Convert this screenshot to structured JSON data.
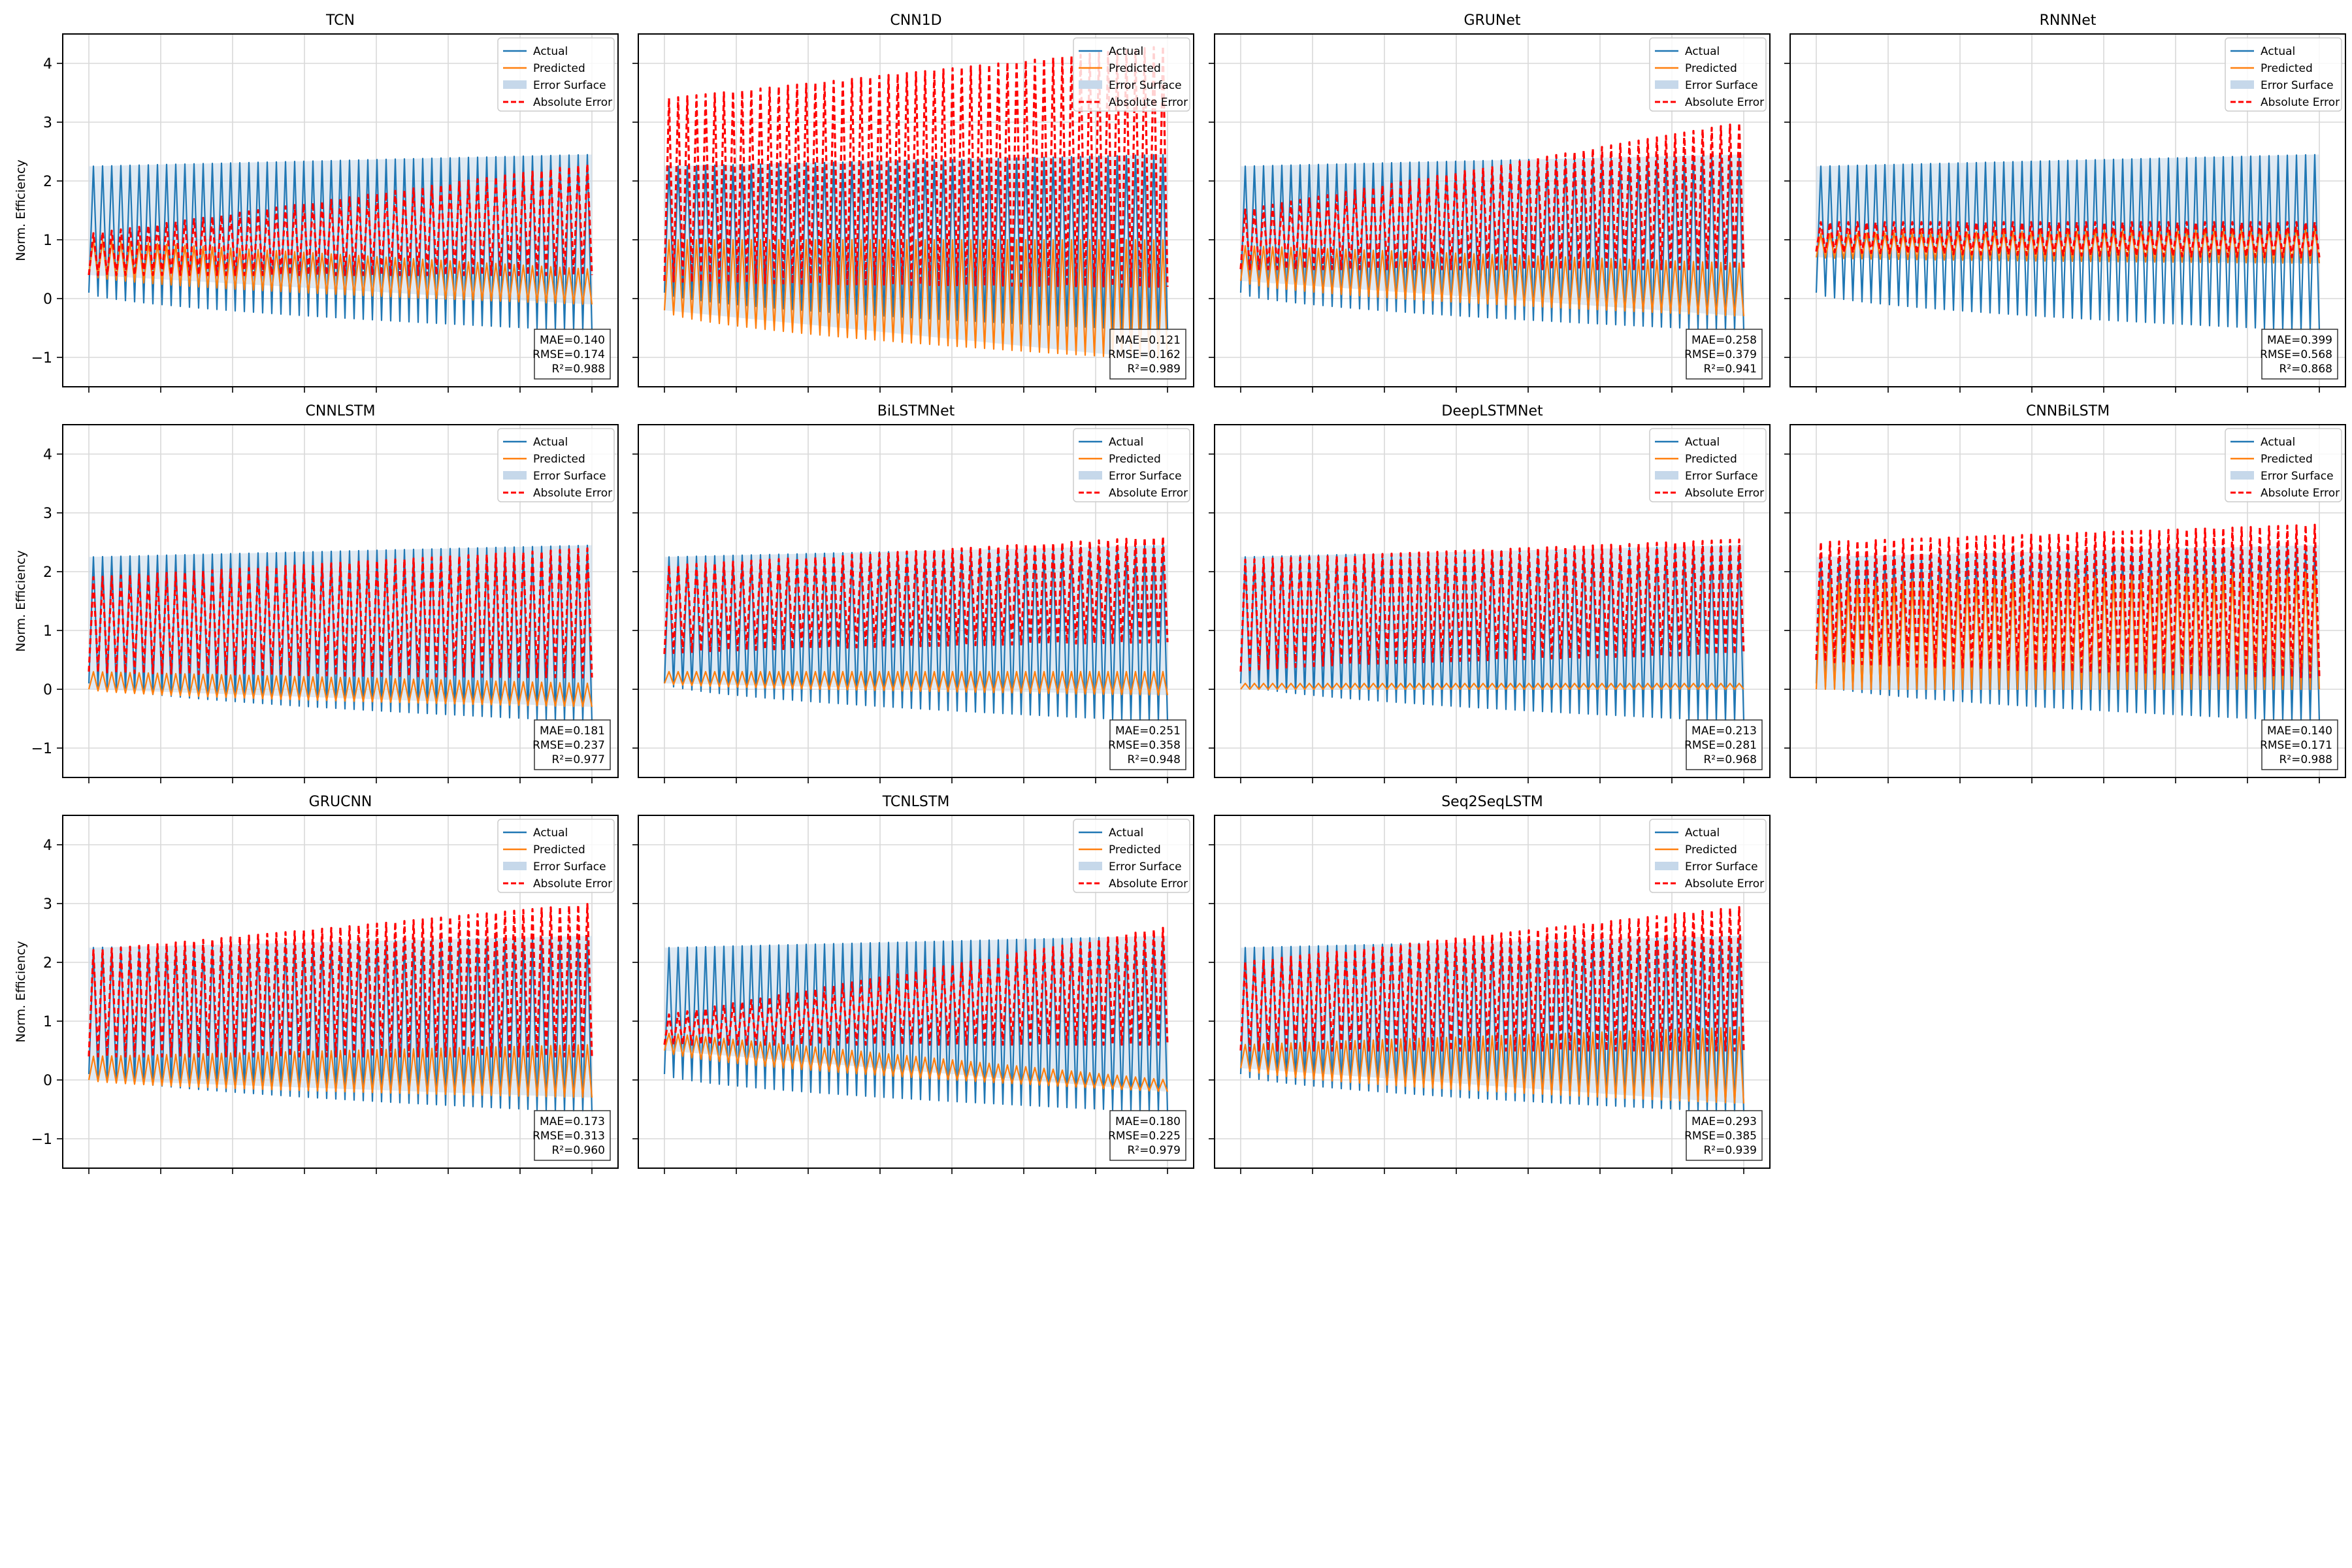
{
  "figure": {
    "ylabel": "Norm. Efficiency",
    "legend_labels": [
      "Actual",
      "Predicted",
      "Error Surface",
      "Absolute Error"
    ],
    "colors": {
      "actual": "#1f77b4",
      "predicted": "#ff7f0e",
      "error_surface": "#c6d8ea",
      "absolute_error": "#ff0000",
      "grid": "#d9d9d9",
      "axis": "#000000"
    }
  },
  "chart_data": [
    {
      "type": "line",
      "title": "TCN",
      "ylim": [
        -1.5,
        4.5
      ],
      "yticks": [
        -1,
        0,
        1,
        2,
        3,
        4
      ],
      "grid": true,
      "legend": "top-right",
      "metrics": {
        "mae": "MAE=0.140",
        "rmse": "RMSE=0.174",
        "r2": "R²=0.988"
      },
      "series": [
        {
          "name": "Actual",
          "envelope": {
            "high": [
              2.25,
              2.45
            ],
            "low": [
              0.1,
              -0.55
            ],
            "cycles": 55
          }
        },
        {
          "name": "Predicted",
          "envelope": {
            "high": [
              1.0,
              0.5
            ],
            "low": [
              0.4,
              -0.1
            ]
          }
        },
        {
          "name": "Absolute Error",
          "envelope": {
            "high": [
              1.1,
              2.3
            ],
            "low": [
              0.4,
              0.4
            ]
          }
        }
      ]
    },
    {
      "type": "line",
      "title": "CNN1D",
      "ylim": [
        -1.5,
        4.5
      ],
      "yticks": [
        -1,
        0,
        1,
        2,
        3,
        4
      ],
      "grid": true,
      "legend": "top-right",
      "metrics": {
        "mae": "MAE=0.121",
        "rmse": "RMSE=0.162",
        "r2": "R²=0.989"
      },
      "series": [
        {
          "name": "Actual",
          "envelope": {
            "high": [
              2.25,
              2.45
            ],
            "low": [
              0.1,
              -0.55
            ],
            "cycles": 55
          }
        },
        {
          "name": "Predicted",
          "envelope": {
            "high": [
              1.0,
              1.0
            ],
            "low": [
              -0.2,
              -1.05
            ]
          }
        },
        {
          "name": "Absolute Error",
          "envelope": {
            "high": [
              3.4,
              4.3
            ],
            "low": [
              0.3,
              0.2
            ]
          }
        }
      ]
    },
    {
      "type": "line",
      "title": "GRUNet",
      "ylim": [
        -1.5,
        4.5
      ],
      "yticks": [
        -1,
        0,
        1,
        2,
        3,
        4
      ],
      "grid": true,
      "legend": "top-right",
      "metrics": {
        "mae": "MAE=0.258",
        "rmse": "RMSE=0.379",
        "r2": "R²=0.941"
      },
      "series": [
        {
          "name": "Actual",
          "envelope": {
            "high": [
              2.25,
              2.45
            ],
            "low": [
              0.1,
              -0.55
            ],
            "cycles": 55
          }
        },
        {
          "name": "Predicted",
          "envelope": {
            "high": [
              0.9,
              0.6
            ],
            "low": [
              0.3,
              -0.3
            ]
          }
        },
        {
          "name": "Absolute Error",
          "envelope": {
            "high": [
              1.5,
              3.0
            ],
            "low": [
              0.5,
              0.5
            ]
          }
        }
      ]
    },
    {
      "type": "line",
      "title": "RNNNet",
      "ylim": [
        -1.5,
        4.5
      ],
      "yticks": [
        -1,
        0,
        1,
        2,
        3,
        4
      ],
      "grid": true,
      "legend": "top-right",
      "metrics": {
        "mae": "MAE=0.399",
        "rmse": "RMSE=0.568",
        "r2": "R²=0.868"
      },
      "series": [
        {
          "name": "Actual",
          "envelope": {
            "high": [
              2.25,
              2.45
            ],
            "low": [
              0.1,
              -0.55
            ],
            "cycles": 55
          }
        },
        {
          "name": "Predicted",
          "envelope": {
            "high": [
              1.1,
              1.2
            ],
            "low": [
              0.7,
              0.6
            ]
          }
        },
        {
          "name": "Absolute Error",
          "envelope": {
            "high": [
              1.3,
              1.3
            ],
            "low": [
              0.8,
              0.7
            ]
          }
        }
      ]
    },
    {
      "type": "line",
      "title": "CNNLSTM",
      "ylim": [
        -1.5,
        4.5
      ],
      "yticks": [
        -1,
        0,
        1,
        2,
        3,
        4
      ],
      "grid": true,
      "legend": "top-right",
      "metrics": {
        "mae": "MAE=0.181",
        "rmse": "RMSE=0.237",
        "r2": "R²=0.977"
      },
      "series": [
        {
          "name": "Actual",
          "envelope": {
            "high": [
              2.25,
              2.45
            ],
            "low": [
              0.1,
              -0.55
            ],
            "cycles": 55
          }
        },
        {
          "name": "Predicted",
          "envelope": {
            "high": [
              0.3,
              0.1
            ],
            "low": [
              0.0,
              -0.3
            ]
          }
        },
        {
          "name": "Absolute Error",
          "envelope": {
            "high": [
              1.9,
              2.4
            ],
            "low": [
              0.3,
              0.2
            ]
          }
        }
      ]
    },
    {
      "type": "line",
      "title": "BiLSTMNet",
      "ylim": [
        -1.5,
        4.5
      ],
      "yticks": [
        -1,
        0,
        1,
        2,
        3,
        4
      ],
      "grid": true,
      "legend": "top-right",
      "metrics": {
        "mae": "MAE=0.251",
        "rmse": "RMSE=0.358",
        "r2": "R²=0.948"
      },
      "series": [
        {
          "name": "Actual",
          "envelope": {
            "high": [
              2.25,
              2.45
            ],
            "low": [
              0.1,
              -0.55
            ],
            "cycles": 55
          }
        },
        {
          "name": "Predicted",
          "envelope": {
            "high": [
              0.3,
              0.3
            ],
            "low": [
              0.1,
              -0.1
            ]
          }
        },
        {
          "name": "Absolute Error",
          "envelope": {
            "high": [
              2.1,
              2.6
            ],
            "low": [
              0.6,
              0.8
            ]
          }
        }
      ]
    },
    {
      "type": "line",
      "title": "DeepLSTMNet",
      "ylim": [
        -1.5,
        4.5
      ],
      "yticks": [
        -1,
        0,
        1,
        2,
        3,
        4
      ],
      "grid": true,
      "legend": "top-right",
      "metrics": {
        "mae": "MAE=0.213",
        "rmse": "RMSE=0.281",
        "r2": "R²=0.968"
      },
      "series": [
        {
          "name": "Actual",
          "envelope": {
            "high": [
              2.25,
              2.45
            ],
            "low": [
              0.1,
              -0.55
            ],
            "cycles": 55
          }
        },
        {
          "name": "Predicted",
          "envelope": {
            "high": [
              0.1,
              0.1
            ],
            "low": [
              0.0,
              0.0
            ]
          }
        },
        {
          "name": "Absolute Error",
          "envelope": {
            "high": [
              2.2,
              2.55
            ],
            "low": [
              0.3,
              0.6
            ]
          }
        }
      ]
    },
    {
      "type": "line",
      "title": "CNNBiLSTM",
      "ylim": [
        -1.5,
        4.5
      ],
      "yticks": [
        -1,
        0,
        1,
        2,
        3,
        4
      ],
      "grid": true,
      "legend": "top-right",
      "metrics": {
        "mae": "MAE=0.140",
        "rmse": "RMSE=0.171",
        "r2": "R²=0.988"
      },
      "series": [
        {
          "name": "Actual",
          "envelope": {
            "high": [
              2.25,
              2.45
            ],
            "low": [
              0.1,
              -0.55
            ],
            "cycles": 55
          }
        },
        {
          "name": "Predicted",
          "envelope": {
            "high": [
              1.8,
              2.0
            ],
            "low": [
              0.0,
              0.0
            ]
          }
        },
        {
          "name": "Absolute Error",
          "envelope": {
            "high": [
              2.5,
              2.8
            ],
            "low": [
              0.5,
              0.2
            ]
          }
        }
      ]
    },
    {
      "type": "line",
      "title": "GRUCNN",
      "ylim": [
        -1.5,
        4.5
      ],
      "yticks": [
        -1,
        0,
        1,
        2,
        3,
        4
      ],
      "grid": true,
      "legend": "top-right",
      "metrics": {
        "mae": "MAE=0.173",
        "rmse": "RMSE=0.313",
        "r2": "R²=0.960"
      },
      "series": [
        {
          "name": "Actual",
          "envelope": {
            "high": [
              2.25,
              2.45
            ],
            "low": [
              0.1,
              -0.55
            ],
            "cycles": 55
          }
        },
        {
          "name": "Predicted",
          "envelope": {
            "high": [
              0.4,
              0.6
            ],
            "low": [
              0.0,
              -0.3
            ]
          }
        },
        {
          "name": "Absolute Error",
          "envelope": {
            "high": [
              2.2,
              3.0
            ],
            "low": [
              0.4,
              0.4
            ]
          }
        }
      ]
    },
    {
      "type": "line",
      "title": "TCNLSTM",
      "ylim": [
        -1.5,
        4.5
      ],
      "yticks": [
        -1,
        0,
        1,
        2,
        3,
        4
      ],
      "grid": true,
      "legend": "top-right",
      "metrics": {
        "mae": "MAE=0.180",
        "rmse": "RMSE=0.225",
        "r2": "R²=0.979"
      },
      "series": [
        {
          "name": "Actual",
          "envelope": {
            "high": [
              2.25,
              2.45
            ],
            "low": [
              0.1,
              -0.55
            ],
            "cycles": 55
          }
        },
        {
          "name": "Predicted",
          "envelope": {
            "high": [
              0.8,
              0.0
            ],
            "low": [
              0.5,
              -0.2
            ]
          }
        },
        {
          "name": "Absolute Error",
          "envelope": {
            "high": [
              1.1,
              2.6
            ],
            "low": [
              0.6,
              0.6
            ]
          }
        }
      ]
    },
    {
      "type": "line",
      "title": "Seq2SeqLSTM",
      "ylim": [
        -1.5,
        4.5
      ],
      "yticks": [
        -1,
        0,
        1,
        2,
        3,
        4
      ],
      "grid": true,
      "legend": "top-right",
      "metrics": {
        "mae": "MAE=0.293",
        "rmse": "RMSE=0.385",
        "r2": "R²=0.939"
      },
      "series": [
        {
          "name": "Actual",
          "envelope": {
            "high": [
              2.25,
              2.45
            ],
            "low": [
              0.1,
              -0.55
            ],
            "cycles": 55
          }
        },
        {
          "name": "Predicted",
          "envelope": {
            "high": [
              0.6,
              0.9
            ],
            "low": [
              0.2,
              -0.4
            ]
          }
        },
        {
          "name": "Absolute Error",
          "envelope": {
            "high": [
              2.0,
              2.95
            ],
            "low": [
              0.5,
              0.5
            ]
          }
        }
      ]
    }
  ]
}
